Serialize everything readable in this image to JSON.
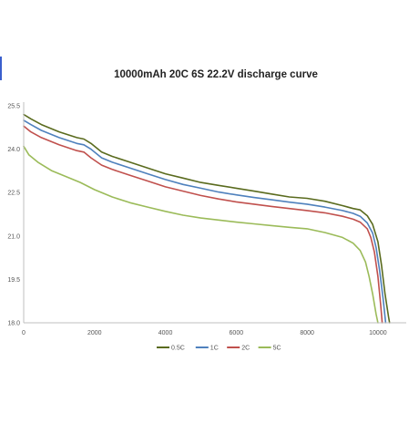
{
  "chart_data": {
    "type": "line",
    "title": "10000mAh 20C 6S 22.2V discharge curve",
    "xlabel": "",
    "ylabel": "",
    "xlim": [
      0,
      10800
    ],
    "ylim": [
      18.0,
      25.5
    ],
    "x_ticks": [
      0,
      2000,
      4000,
      6000,
      8000,
      10000
    ],
    "y_ticks": [
      18.0,
      19.5,
      21.0,
      22.5,
      24.0,
      25.5
    ],
    "x_tick_labels": [
      "0",
      "2000",
      "4000",
      "6000",
      "8000",
      "10000"
    ],
    "y_tick_labels": [
      "18.0",
      "19.5",
      "21.0",
      "22.5",
      "24.0",
      "25.5"
    ],
    "grid": false,
    "legend_position": "bottom",
    "series": [
      {
        "name": "0.5C",
        "color": "#5a6b1e",
        "points": [
          [
            0,
            25.2
          ],
          [
            200,
            25.05
          ],
          [
            500,
            24.85
          ],
          [
            1000,
            24.6
          ],
          [
            1500,
            24.4
          ],
          [
            1700,
            24.35
          ],
          [
            1900,
            24.2
          ],
          [
            2200,
            23.9
          ],
          [
            2500,
            23.75
          ],
          [
            3000,
            23.55
          ],
          [
            3500,
            23.35
          ],
          [
            4000,
            23.15
          ],
          [
            4500,
            23.0
          ],
          [
            5000,
            22.85
          ],
          [
            5500,
            22.75
          ],
          [
            6000,
            22.65
          ],
          [
            6500,
            22.55
          ],
          [
            7000,
            22.45
          ],
          [
            7500,
            22.35
          ],
          [
            8000,
            22.3
          ],
          [
            8500,
            22.2
          ],
          [
            9000,
            22.05
          ],
          [
            9300,
            21.95
          ],
          [
            9500,
            21.9
          ],
          [
            9700,
            21.7
          ],
          [
            9850,
            21.4
          ],
          [
            10000,
            20.8
          ],
          [
            10100,
            20.0
          ],
          [
            10200,
            19.0
          ],
          [
            10300,
            18.2
          ],
          [
            10330,
            18.0
          ]
        ]
      },
      {
        "name": "1C",
        "color": "#4f81bd",
        "points": [
          [
            0,
            25.0
          ],
          [
            200,
            24.85
          ],
          [
            500,
            24.65
          ],
          [
            1000,
            24.4
          ],
          [
            1500,
            24.2
          ],
          [
            1700,
            24.15
          ],
          [
            1900,
            24.0
          ],
          [
            2200,
            23.7
          ],
          [
            2500,
            23.55
          ],
          [
            3000,
            23.35
          ],
          [
            3500,
            23.15
          ],
          [
            4000,
            22.95
          ],
          [
            4500,
            22.78
          ],
          [
            5000,
            22.65
          ],
          [
            5500,
            22.52
          ],
          [
            6000,
            22.42
          ],
          [
            6500,
            22.33
          ],
          [
            7000,
            22.25
          ],
          [
            7500,
            22.17
          ],
          [
            8000,
            22.1
          ],
          [
            8500,
            22.0
          ],
          [
            9000,
            21.88
          ],
          [
            9300,
            21.78
          ],
          [
            9500,
            21.68
          ],
          [
            9700,
            21.45
          ],
          [
            9850,
            21.1
          ],
          [
            9950,
            20.6
          ],
          [
            10050,
            19.8
          ],
          [
            10150,
            18.8
          ],
          [
            10220,
            18.0
          ]
        ]
      },
      {
        "name": "2C",
        "color": "#c0504d",
        "points": [
          [
            0,
            24.8
          ],
          [
            200,
            24.6
          ],
          [
            500,
            24.4
          ],
          [
            1000,
            24.15
          ],
          [
            1500,
            23.95
          ],
          [
            1700,
            23.9
          ],
          [
            1900,
            23.7
          ],
          [
            2200,
            23.45
          ],
          [
            2500,
            23.3
          ],
          [
            3000,
            23.1
          ],
          [
            3500,
            22.9
          ],
          [
            4000,
            22.7
          ],
          [
            4500,
            22.55
          ],
          [
            5000,
            22.4
          ],
          [
            5500,
            22.28
          ],
          [
            6000,
            22.18
          ],
          [
            6500,
            22.1
          ],
          [
            7000,
            22.02
          ],
          [
            7500,
            21.95
          ],
          [
            8000,
            21.88
          ],
          [
            8500,
            21.8
          ],
          [
            9000,
            21.68
          ],
          [
            9300,
            21.58
          ],
          [
            9500,
            21.48
          ],
          [
            9700,
            21.25
          ],
          [
            9800,
            20.95
          ],
          [
            9900,
            20.45
          ],
          [
            10000,
            19.6
          ],
          [
            10080,
            18.6
          ],
          [
            10120,
            18.0
          ]
        ]
      },
      {
        "name": "5C",
        "color": "#9bbb59",
        "points": [
          [
            0,
            24.1
          ],
          [
            150,
            23.8
          ],
          [
            400,
            23.55
          ],
          [
            800,
            23.25
          ],
          [
            1200,
            23.05
          ],
          [
            1600,
            22.85
          ],
          [
            2000,
            22.6
          ],
          [
            2500,
            22.35
          ],
          [
            3000,
            22.15
          ],
          [
            3500,
            22.0
          ],
          [
            4000,
            21.85
          ],
          [
            4500,
            21.72
          ],
          [
            5000,
            21.62
          ],
          [
            5500,
            21.55
          ],
          [
            6000,
            21.48
          ],
          [
            6500,
            21.42
          ],
          [
            7000,
            21.36
          ],
          [
            7500,
            21.3
          ],
          [
            8000,
            21.25
          ],
          [
            8500,
            21.12
          ],
          [
            9000,
            20.95
          ],
          [
            9300,
            20.75
          ],
          [
            9500,
            20.5
          ],
          [
            9650,
            20.1
          ],
          [
            9750,
            19.6
          ],
          [
            9850,
            19.0
          ],
          [
            9950,
            18.3
          ],
          [
            10000,
            18.0
          ]
        ]
      }
    ]
  }
}
